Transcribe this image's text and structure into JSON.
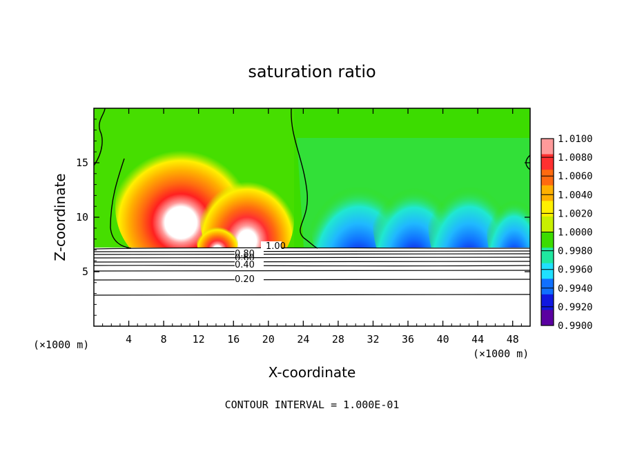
{
  "chart_data": {
    "type": "heatmap",
    "title": "saturation ratio",
    "xlabel": "X-coordinate",
    "ylabel": "Z-coordinate",
    "x_unit_left": "(×1000 m)",
    "x_unit_right": "(×1000 m)",
    "footer": "CONTOUR INTERVAL = 1.000E-01",
    "xlim": [
      0,
      50
    ],
    "ylim": [
      0,
      20
    ],
    "x_ticks": [
      "4",
      "8",
      "12",
      "16",
      "20",
      "24",
      "28",
      "32",
      "36",
      "40",
      "44",
      "48"
    ],
    "y_ticks": [
      "5",
      "10",
      "15"
    ],
    "colorbar": {
      "labels": [
        "1.0100",
        "1.0080",
        "1.0060",
        "1.0040",
        "1.0020",
        "1.0000",
        "0.9980",
        "0.9960",
        "0.9940",
        "0.9920",
        "0.9900"
      ],
      "colors": [
        "#ff9a9a",
        "#ff3030",
        "#ff6a10",
        "#ffb000",
        "#fff000",
        "#c8f000",
        "#3cdc00",
        "#20e8a0",
        "#20e0ff",
        "#1070ff",
        "#1018e0",
        "#5a00a0"
      ]
    },
    "contour_labels": [
      "1.00",
      "0.80",
      "0.60",
      "0.40",
      "0.20"
    ],
    "contour_levels": [
      1.0,
      0.8,
      0.6,
      0.4,
      0.2
    ],
    "features": [
      {
        "region": "supersaturated plumes (red/orange)",
        "x_range": [
          6,
          22
        ],
        "z_range": [
          7.2,
          16.5
        ],
        "max_value": 1.01
      },
      {
        "region": "subsaturated plumes (blue/cyan)",
        "x_range": [
          27,
          50
        ],
        "z_range": [
          7.2,
          15
        ],
        "min_value": 0.99
      },
      {
        "region": "layered contours below ~7 km",
        "z_range": [
          0,
          7.2
        ],
        "levels": [
          0.2,
          0.4,
          0.6,
          0.8,
          1.0
        ]
      }
    ]
  }
}
